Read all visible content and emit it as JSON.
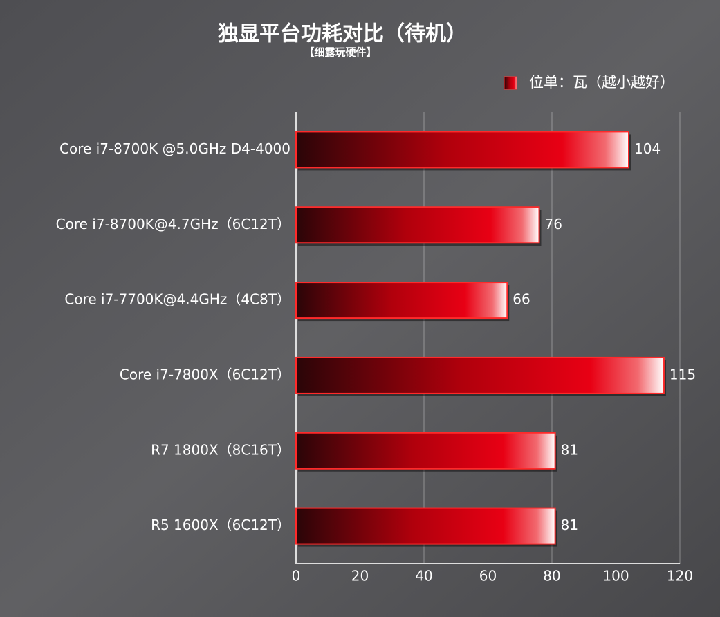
{
  "chart_data": {
    "type": "bar",
    "orientation": "horizontal",
    "title": "独显平台功耗对比（待机）",
    "subtitle": "【细露玩硬件】",
    "categories": [
      "Core i7-8700K @5.0GHz D4-4000",
      "Core i7-8700K@4.7GHz（6C12T）",
      "Core i7-7700K@4.4GHz（4C8T）",
      "Core i7-7800X（6C12T）",
      "R7 1800X（8C16T）",
      "R5 1600X（6C12T）"
    ],
    "series": [
      {
        "name": "位单：瓦（越小越好）",
        "color": "#e00012",
        "values": [
          104,
          76,
          66,
          115,
          81,
          81
        ]
      }
    ],
    "xlim": [
      0,
      120
    ],
    "xticks": [
      0,
      20,
      40,
      60,
      80,
      100,
      120
    ],
    "grid": true,
    "legend": "top-right"
  }
}
